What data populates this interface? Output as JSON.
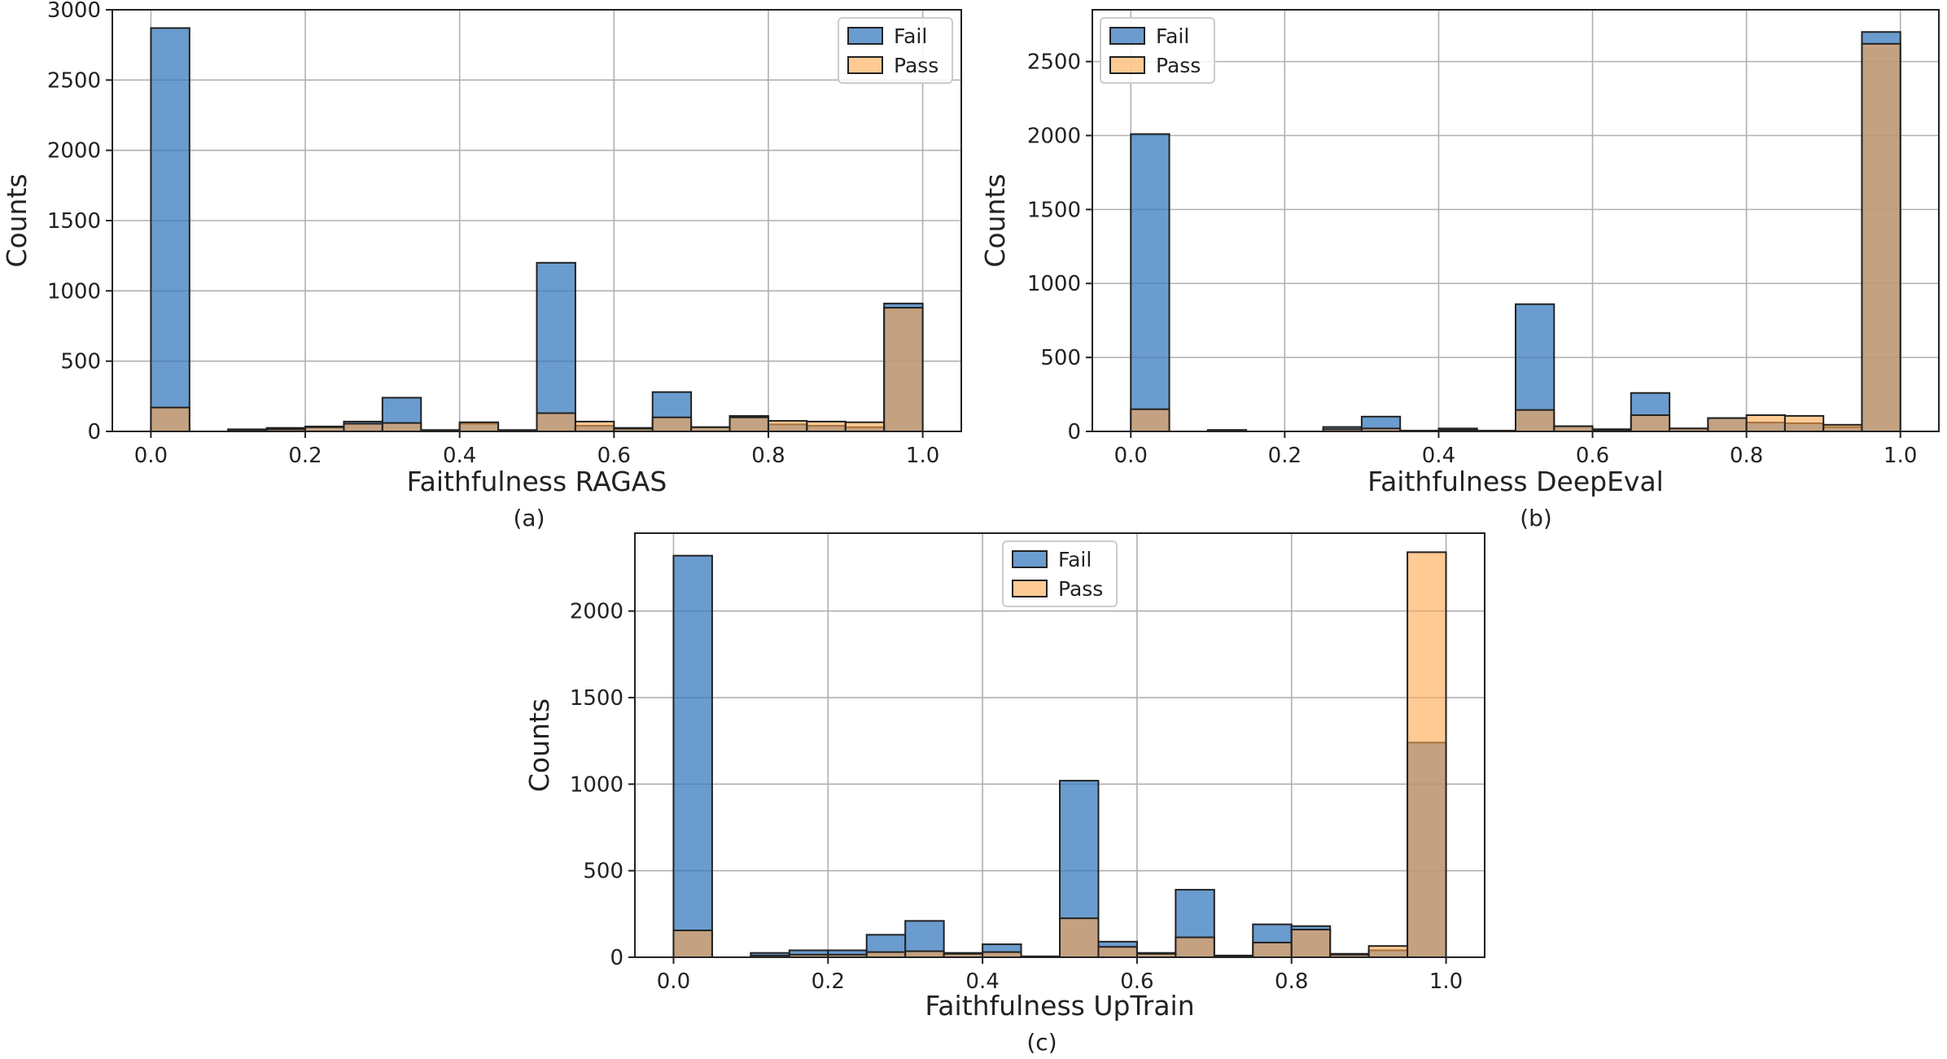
{
  "colors": {
    "fail": "#3a7bbf",
    "pass": "#ffa64d",
    "fail_opacity": 0.75,
    "pass_opacity": 0.6
  },
  "chart_data": [
    {
      "type": "bar",
      "caption": "(a)",
      "xlabel": "Faithfulness RAGAS",
      "ylabel": "Counts",
      "xlim": [
        -0.05,
        1.05
      ],
      "ylim": [
        0,
        3000
      ],
      "xticks": [
        0.0,
        0.2,
        0.4,
        0.6,
        0.8,
        1.0
      ],
      "yticks": [
        0,
        500,
        1000,
        1500,
        2000,
        2500,
        3000
      ],
      "grid": true,
      "legend_position": "top-right",
      "bin_edges": [
        0.0,
        0.05,
        0.1,
        0.15,
        0.2,
        0.25,
        0.3,
        0.35,
        0.4,
        0.45,
        0.5,
        0.55,
        0.6,
        0.65,
        0.7,
        0.75,
        0.8,
        0.85,
        0.9,
        0.95,
        1.0
      ],
      "series": [
        {
          "name": "Fail",
          "values": [
            2870,
            0,
            15,
            25,
            35,
            70,
            240,
            10,
            55,
            10,
            1200,
            40,
            25,
            280,
            30,
            110,
            50,
            40,
            30,
            910
          ]
        },
        {
          "name": "Pass",
          "values": [
            170,
            0,
            10,
            15,
            30,
            55,
            60,
            5,
            65,
            5,
            130,
            70,
            20,
            100,
            30,
            100,
            75,
            70,
            65,
            880
          ]
        }
      ]
    },
    {
      "type": "bar",
      "caption": "(b)",
      "xlabel": "Faithfulness DeepEval",
      "ylabel": "Counts",
      "xlim": [
        -0.05,
        1.05
      ],
      "ylim": [
        0,
        2850
      ],
      "xticks": [
        0.0,
        0.2,
        0.4,
        0.6,
        0.8,
        1.0
      ],
      "yticks": [
        0,
        500,
        1000,
        1500,
        2000,
        2500
      ],
      "grid": true,
      "legend_position": "top-left",
      "bin_edges": [
        0.0,
        0.05,
        0.1,
        0.15,
        0.2,
        0.25,
        0.3,
        0.35,
        0.4,
        0.45,
        0.5,
        0.55,
        0.6,
        0.65,
        0.7,
        0.75,
        0.8,
        0.85,
        0.9,
        0.95,
        1.0
      ],
      "series": [
        {
          "name": "Fail",
          "values": [
            2010,
            0,
            10,
            0,
            0,
            30,
            100,
            5,
            20,
            5,
            860,
            35,
            15,
            260,
            20,
            90,
            60,
            55,
            30,
            2700
          ]
        },
        {
          "name": "Pass",
          "values": [
            150,
            0,
            5,
            0,
            0,
            15,
            20,
            5,
            10,
            5,
            145,
            35,
            10,
            110,
            20,
            90,
            110,
            105,
            45,
            2620
          ]
        }
      ]
    },
    {
      "type": "bar",
      "caption": "(c)",
      "xlabel": "Faithfulness UpTrain",
      "ylabel": "Counts",
      "xlim": [
        -0.05,
        1.05
      ],
      "ylim": [
        0,
        2450
      ],
      "xticks": [
        0.0,
        0.2,
        0.4,
        0.6,
        0.8,
        1.0
      ],
      "yticks": [
        0,
        500,
        1000,
        1500,
        2000
      ],
      "grid": true,
      "legend_position": "top-center",
      "bin_edges": [
        0.0,
        0.05,
        0.1,
        0.15,
        0.2,
        0.25,
        0.3,
        0.35,
        0.4,
        0.45,
        0.5,
        0.55,
        0.6,
        0.65,
        0.7,
        0.75,
        0.8,
        0.85,
        0.9,
        0.95,
        1.0
      ],
      "series": [
        {
          "name": "Fail",
          "values": [
            2320,
            0,
            25,
            40,
            40,
            130,
            210,
            25,
            75,
            5,
            1020,
            90,
            25,
            390,
            10,
            190,
            180,
            20,
            40,
            1240
          ]
        },
        {
          "name": "Pass",
          "values": [
            155,
            0,
            10,
            15,
            15,
            30,
            35,
            20,
            30,
            5,
            225,
            60,
            20,
            115,
            5,
            85,
            160,
            15,
            65,
            2340
          ]
        }
      ]
    }
  ]
}
